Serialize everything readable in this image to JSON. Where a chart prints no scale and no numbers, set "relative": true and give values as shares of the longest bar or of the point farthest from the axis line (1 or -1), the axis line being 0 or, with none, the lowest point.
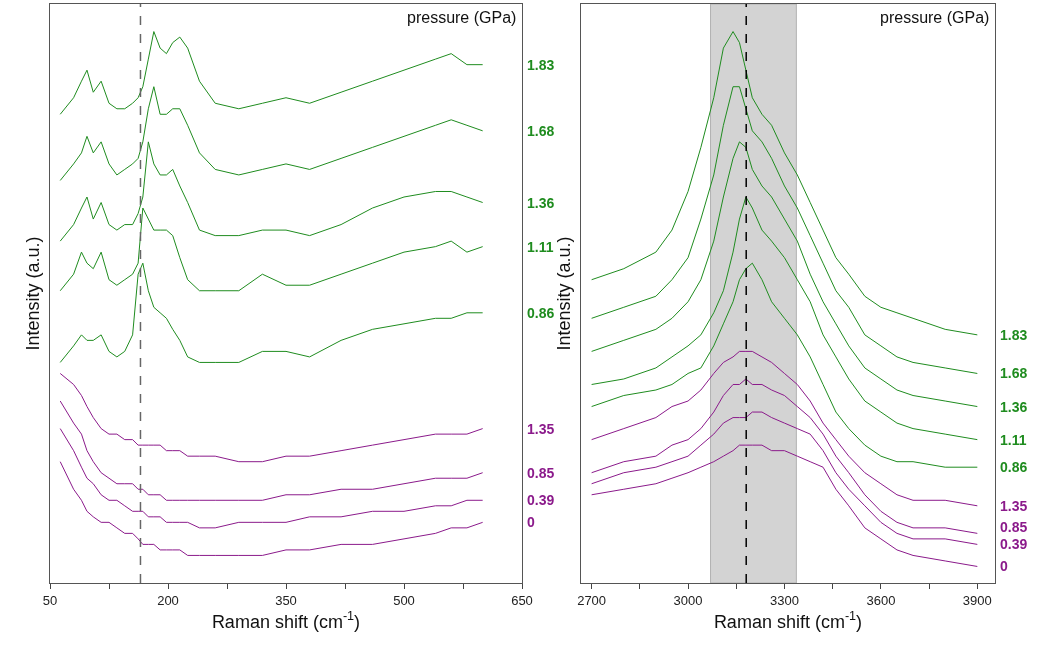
{
  "chart_data": [
    {
      "type": "line",
      "relative": true,
      "xlabel": "Raman shift (cm$^{-1}$)",
      "ylabel": "Intensity (a.u.)",
      "legend_title": "pressure (GPa)",
      "tick_labels": "x",
      "xlim": [
        50,
        650
      ],
      "xticks": [
        50,
        {
          "value": 125,
          "label": null
        },
        200,
        {
          "value": 275,
          "label": null
        },
        350,
        {
          "value": 425,
          "label": null
        },
        500,
        {
          "value": 575,
          "label": null
        },
        650
      ],
      "x": [
        63,
        80,
        90,
        97,
        105,
        115,
        125,
        135,
        145,
        155,
        162,
        168,
        175,
        182,
        190,
        198,
        206,
        215,
        225,
        240,
        260,
        290,
        320,
        350,
        380,
        420,
        460,
        500,
        540,
        560,
        580,
        600
      ],
      "ref_lines": [
        {
          "axis": "x",
          "value": 165,
          "color": "#666666",
          "line_style": "dashed"
        }
      ],
      "series": [
        {
          "name": "1.83",
          "color": "#1f8c1f",
          "values": [
            0.85,
            0.88,
            0.91,
            0.93,
            0.89,
            0.91,
            0.87,
            0.86,
            0.86,
            0.87,
            0.88,
            0.9,
            0.95,
            1.0,
            0.97,
            0.96,
            0.98,
            0.99,
            0.97,
            0.91,
            0.87,
            0.86,
            0.87,
            0.88,
            0.87,
            0.89,
            0.91,
            0.93,
            0.95,
            0.96,
            0.94,
            0.94
          ]
        },
        {
          "name": "1.68",
          "color": "#1f8c1f",
          "values": [
            0.73,
            0.76,
            0.78,
            0.81,
            0.78,
            0.8,
            0.76,
            0.74,
            0.75,
            0.76,
            0.77,
            0.8,
            0.86,
            0.9,
            0.85,
            0.85,
            0.86,
            0.86,
            0.83,
            0.78,
            0.75,
            0.74,
            0.75,
            0.76,
            0.75,
            0.77,
            0.79,
            0.81,
            0.83,
            0.84,
            0.83,
            0.82
          ]
        },
        {
          "name": "1.36",
          "color": "#1f8c1f",
          "values": [
            0.62,
            0.65,
            0.68,
            0.7,
            0.66,
            0.69,
            0.65,
            0.64,
            0.65,
            0.65,
            0.67,
            0.7,
            0.8,
            0.76,
            0.74,
            0.74,
            0.75,
            0.72,
            0.69,
            0.64,
            0.63,
            0.63,
            0.64,
            0.64,
            0.63,
            0.65,
            0.68,
            0.7,
            0.71,
            0.71,
            0.7,
            0.69
          ]
        },
        {
          "name": "1.11",
          "color": "#1f8c1f",
          "values": [
            0.53,
            0.56,
            0.6,
            0.58,
            0.57,
            0.6,
            0.55,
            0.54,
            0.55,
            0.56,
            0.58,
            0.68,
            0.66,
            0.64,
            0.64,
            0.64,
            0.63,
            0.59,
            0.55,
            0.53,
            0.53,
            0.53,
            0.56,
            0.54,
            0.54,
            0.56,
            0.58,
            0.6,
            0.61,
            0.62,
            0.6,
            0.61
          ]
        },
        {
          "name": "0.86",
          "color": "#1f8c1f",
          "values": [
            0.4,
            0.43,
            0.45,
            0.44,
            0.44,
            0.45,
            0.42,
            0.41,
            0.42,
            0.45,
            0.56,
            0.58,
            0.53,
            0.5,
            0.49,
            0.48,
            0.46,
            0.44,
            0.41,
            0.4,
            0.4,
            0.4,
            0.42,
            0.42,
            0.41,
            0.44,
            0.46,
            0.47,
            0.48,
            0.48,
            0.49,
            0.49
          ]
        },
        {
          "name": "1.35",
          "color": "#8b1a8b",
          "values": [
            0.38,
            0.36,
            0.34,
            0.32,
            0.3,
            0.28,
            0.27,
            0.27,
            0.26,
            0.26,
            0.25,
            0.25,
            0.25,
            0.25,
            0.25,
            0.24,
            0.24,
            0.24,
            0.23,
            0.23,
            0.23,
            0.22,
            0.22,
            0.23,
            0.23,
            0.24,
            0.25,
            0.26,
            0.27,
            0.27,
            0.27,
            0.28
          ]
        },
        {
          "name": "0.85",
          "color": "#8b1a8b",
          "values": [
            0.33,
            0.29,
            0.27,
            0.24,
            0.22,
            0.2,
            0.19,
            0.18,
            0.18,
            0.18,
            0.17,
            0.17,
            0.16,
            0.16,
            0.16,
            0.15,
            0.15,
            0.15,
            0.15,
            0.15,
            0.15,
            0.15,
            0.15,
            0.16,
            0.16,
            0.17,
            0.17,
            0.18,
            0.19,
            0.19,
            0.19,
            0.2
          ]
        },
        {
          "name": "0.39",
          "color": "#8b1a8b",
          "values": [
            0.28,
            0.24,
            0.21,
            0.19,
            0.18,
            0.16,
            0.15,
            0.15,
            0.14,
            0.13,
            0.13,
            0.13,
            0.12,
            0.12,
            0.12,
            0.11,
            0.11,
            0.11,
            0.11,
            0.1,
            0.1,
            0.11,
            0.11,
            0.11,
            0.12,
            0.12,
            0.13,
            0.13,
            0.14,
            0.14,
            0.15,
            0.15
          ]
        },
        {
          "name": "0",
          "color": "#8b1a8b",
          "values": [
            0.22,
            0.17,
            0.15,
            0.13,
            0.12,
            0.11,
            0.11,
            0.1,
            0.09,
            0.09,
            0.08,
            0.07,
            0.07,
            0.07,
            0.06,
            0.06,
            0.06,
            0.06,
            0.05,
            0.05,
            0.05,
            0.05,
            0.05,
            0.06,
            0.06,
            0.07,
            0.07,
            0.08,
            0.09,
            0.1,
            0.1,
            0.11
          ]
        }
      ]
    },
    {
      "type": "line",
      "relative": true,
      "xlabel": "Raman shift (cm$^{-1}$)",
      "ylabel": "Intensity (a.u.)",
      "legend_title": "pressure (GPa)",
      "tick_labels": "x",
      "xlim": [
        2667,
        3955
      ],
      "xticks": [
        2700,
        {
          "value": 2850,
          "label": null
        },
        3000,
        {
          "value": 3150,
          "label": null
        },
        3300,
        {
          "value": 3450,
          "label": null
        },
        3600,
        {
          "value": 3750,
          "label": null
        },
        3900
      ],
      "x": [
        2700,
        2800,
        2900,
        2950,
        3000,
        3040,
        3080,
        3110,
        3140,
        3160,
        3180,
        3200,
        3230,
        3260,
        3300,
        3340,
        3380,
        3420,
        3460,
        3500,
        3550,
        3600,
        3650,
        3700,
        3800,
        3900
      ],
      "ref_lines": [
        {
          "axis": "x",
          "value": 3181,
          "color": "#000000",
          "line_style": "dashed"
        }
      ],
      "bands": [
        {
          "axis": "x",
          "from": 3070,
          "to": 3337,
          "color": "#a0a0a0"
        }
      ],
      "series": [
        {
          "name": "1.83",
          "color": "#1f8c1f",
          "values": [
            0.55,
            0.57,
            0.6,
            0.64,
            0.71,
            0.79,
            0.88,
            0.97,
            1.0,
            0.98,
            0.93,
            0.88,
            0.85,
            0.83,
            0.78,
            0.74,
            0.69,
            0.64,
            0.59,
            0.56,
            0.52,
            0.5,
            0.49,
            0.48,
            0.46,
            0.45
          ]
        },
        {
          "name": "1.68",
          "color": "#1f8c1f",
          "values": [
            0.48,
            0.5,
            0.52,
            0.55,
            0.59,
            0.66,
            0.74,
            0.83,
            0.9,
            0.9,
            0.86,
            0.82,
            0.8,
            0.77,
            0.72,
            0.68,
            0.63,
            0.58,
            0.53,
            0.5,
            0.45,
            0.43,
            0.41,
            0.4,
            0.39,
            0.38
          ]
        },
        {
          "name": "1.36",
          "color": "#1f8c1f",
          "values": [
            0.42,
            0.44,
            0.46,
            0.48,
            0.51,
            0.55,
            0.62,
            0.7,
            0.77,
            0.8,
            0.79,
            0.75,
            0.72,
            0.7,
            0.66,
            0.62,
            0.56,
            0.51,
            0.47,
            0.43,
            0.39,
            0.37,
            0.35,
            0.34,
            0.33,
            0.32
          ]
        },
        {
          "name": "1.11",
          "color": "#1f8c1f",
          "values": [
            0.36,
            0.37,
            0.39,
            0.41,
            0.43,
            0.45,
            0.49,
            0.53,
            0.6,
            0.66,
            0.7,
            0.68,
            0.64,
            0.62,
            0.59,
            0.55,
            0.51,
            0.45,
            0.41,
            0.37,
            0.33,
            0.31,
            0.29,
            0.28,
            0.27,
            0.26
          ]
        },
        {
          "name": "0.86",
          "color": "#1f8c1f",
          "values": [
            0.32,
            0.34,
            0.35,
            0.36,
            0.38,
            0.39,
            0.43,
            0.47,
            0.51,
            0.55,
            0.57,
            0.58,
            0.55,
            0.51,
            0.48,
            0.45,
            0.41,
            0.36,
            0.31,
            0.28,
            0.25,
            0.23,
            0.22,
            0.22,
            0.21,
            0.21
          ]
        },
        {
          "name": "1.35",
          "color": "#8b1a8b",
          "values": [
            0.26,
            0.28,
            0.3,
            0.32,
            0.33,
            0.35,
            0.38,
            0.4,
            0.41,
            0.42,
            0.42,
            0.42,
            0.41,
            0.4,
            0.38,
            0.36,
            0.33,
            0.29,
            0.26,
            0.23,
            0.2,
            0.18,
            0.16,
            0.15,
            0.15,
            0.14
          ]
        },
        {
          "name": "0.85",
          "color": "#8b1a8b",
          "values": [
            0.2,
            0.22,
            0.23,
            0.25,
            0.26,
            0.28,
            0.31,
            0.34,
            0.36,
            0.36,
            0.37,
            0.36,
            0.36,
            0.35,
            0.34,
            0.32,
            0.3,
            0.27,
            0.23,
            0.2,
            0.16,
            0.13,
            0.11,
            0.1,
            0.1,
            0.09
          ]
        },
        {
          "name": "0.39",
          "color": "#8b1a8b",
          "values": [
            0.18,
            0.2,
            0.21,
            0.22,
            0.23,
            0.25,
            0.27,
            0.29,
            0.3,
            0.3,
            0.3,
            0.31,
            0.31,
            0.3,
            0.29,
            0.28,
            0.27,
            0.24,
            0.2,
            0.17,
            0.14,
            0.11,
            0.09,
            0.08,
            0.08,
            0.07
          ]
        },
        {
          "name": "0",
          "color": "#8b1a8b",
          "values": [
            0.16,
            0.17,
            0.18,
            0.19,
            0.2,
            0.21,
            0.22,
            0.23,
            0.24,
            0.25,
            0.25,
            0.25,
            0.25,
            0.24,
            0.24,
            0.23,
            0.22,
            0.21,
            0.17,
            0.14,
            0.1,
            0.08,
            0.06,
            0.05,
            0.04,
            0.03
          ]
        }
      ]
    }
  ]
}
